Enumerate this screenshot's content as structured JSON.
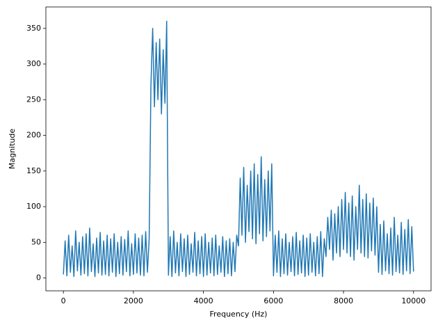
{
  "chart_data": {
    "type": "line",
    "xlabel": "Frequency (Hz)",
    "ylabel": "Magnitude",
    "xlim": [
      -500,
      10500
    ],
    "ylim": [
      -18,
      380
    ],
    "xticks": [
      0,
      2000,
      4000,
      6000,
      8000,
      10000
    ],
    "yticks": [
      0,
      50,
      100,
      150,
      200,
      250,
      300,
      350
    ],
    "x": [
      0,
      50,
      100,
      150,
      200,
      250,
      300,
      350,
      400,
      450,
      500,
      550,
      600,
      650,
      700,
      750,
      800,
      850,
      900,
      950,
      1000,
      1050,
      1100,
      1150,
      1200,
      1250,
      1300,
      1350,
      1400,
      1450,
      1500,
      1550,
      1600,
      1650,
      1700,
      1750,
      1800,
      1850,
      1900,
      1950,
      2000,
      2050,
      2100,
      2150,
      2200,
      2250,
      2300,
      2350,
      2400,
      2450,
      2500,
      2550,
      2600,
      2650,
      2700,
      2750,
      2800,
      2850,
      2900,
      2950,
      3000,
      3050,
      3100,
      3150,
      3200,
      3250,
      3300,
      3350,
      3400,
      3450,
      3500,
      3550,
      3600,
      3650,
      3700,
      3750,
      3800,
      3850,
      3900,
      3950,
      4000,
      4050,
      4100,
      4150,
      4200,
      4250,
      4300,
      4350,
      4400,
      4450,
      4500,
      4550,
      4600,
      4650,
      4700,
      4750,
      4800,
      4850,
      4900,
      4950,
      5000,
      5050,
      5100,
      5150,
      5200,
      5250,
      5300,
      5350,
      5400,
      5450,
      5500,
      5550,
      5600,
      5650,
      5700,
      5750,
      5800,
      5850,
      5900,
      5950,
      6000,
      6050,
      6100,
      6150,
      6200,
      6250,
      6300,
      6350,
      6400,
      6450,
      6500,
      6550,
      6600,
      6650,
      6700,
      6750,
      6800,
      6850,
      6900,
      6950,
      7000,
      7050,
      7100,
      7150,
      7200,
      7250,
      7300,
      7350,
      7400,
      7450,
      7500,
      7550,
      7600,
      7650,
      7700,
      7750,
      7800,
      7850,
      7900,
      7950,
      8000,
      8050,
      8100,
      8150,
      8200,
      8250,
      8300,
      8350,
      8400,
      8450,
      8500,
      8550,
      8600,
      8650,
      8700,
      8750,
      8800,
      8850,
      8900,
      8950,
      9000,
      9050,
      9100,
      9150,
      9200,
      9250,
      9300,
      9350,
      9400,
      9450,
      9500,
      9550,
      9600,
      9650,
      9700,
      9750,
      9800,
      9850,
      9900,
      9950,
      10000
    ],
    "series": [
      {
        "color": "#1f77b4",
        "values": [
          5,
          52,
          3,
          60,
          8,
          45,
          2,
          66,
          10,
          50,
          4,
          58,
          6,
          62,
          3,
          70,
          9,
          48,
          2,
          56,
          7,
          64,
          4,
          52,
          5,
          60,
          3,
          55,
          8,
          62,
          2,
          50,
          6,
          58,
          4,
          54,
          9,
          66,
          3,
          48,
          5,
          62,
          7,
          56,
          4,
          60,
          3,
          65,
          8,
          55,
          270,
          350,
          240,
          330,
          250,
          335,
          230,
          320,
          245,
          360,
          4,
          58,
          2,
          66,
          7,
          50,
          3,
          62,
          9,
          55,
          2,
          60,
          5,
          48,
          8,
          64,
          3,
          52,
          6,
          58,
          2,
          62,
          4,
          50,
          7,
          56,
          3,
          60,
          5,
          45,
          8,
          58,
          2,
          52,
          6,
          55,
          3,
          50,
          9,
          60,
          45,
          140,
          60,
          155,
          50,
          130,
          65,
          150,
          55,
          160,
          48,
          145,
          62,
          170,
          52,
          138,
          58,
          150,
          66,
          160,
          3,
          60,
          8,
          66,
          2,
          55,
          6,
          62,
          4,
          50,
          9,
          58,
          3,
          64,
          5,
          52,
          7,
          60,
          2,
          56,
          4,
          62,
          8,
          50,
          3,
          58,
          6,
          65,
          2,
          55,
          30,
          85,
          40,
          95,
          25,
          90,
          35,
          100,
          30,
          110,
          40,
          120,
          35,
          105,
          30,
          115,
          25,
          100,
          40,
          130,
          35,
          110,
          30,
          118,
          28,
          105,
          38,
          112,
          32,
          100,
          8,
          75,
          5,
          80,
          10,
          62,
          6,
          70,
          4,
          85,
          9,
          60,
          7,
          78,
          5,
          68,
          10,
          82,
          6,
          72,
          9
        ]
      }
    ]
  }
}
